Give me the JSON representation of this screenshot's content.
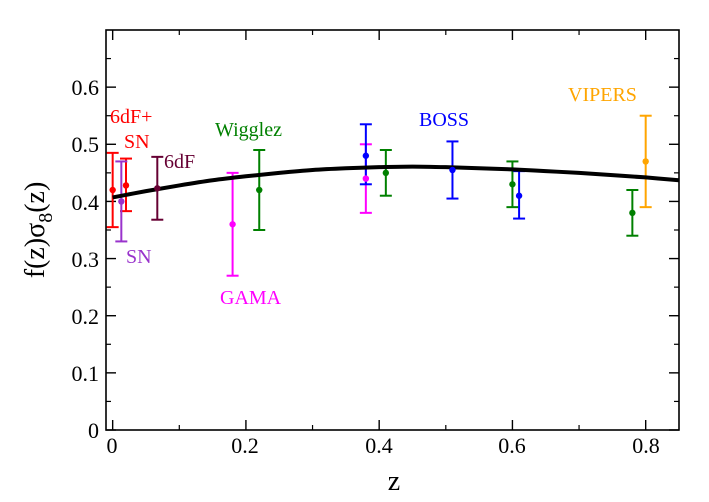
{
  "chart_data": {
    "type": "scatter",
    "title": "",
    "xlabel": "z",
    "ylabel_main": "f(z)σ",
    "ylabel_sub": "8",
    "ylabel_tail": "(z)",
    "xlim": [
      -0.01,
      0.85
    ],
    "ylim": [
      0,
      0.7
    ],
    "x_ticks": [
      0,
      0.2,
      0.4,
      0.6,
      0.8
    ],
    "x_tick_labels": [
      "0",
      "0.2",
      "0.4",
      "0.6",
      "0.8"
    ],
    "y_ticks": [
      0,
      0.1,
      0.2,
      0.3,
      0.4,
      0.5,
      0.6
    ],
    "y_tick_labels": [
      "0",
      "0.1",
      "0.2",
      "0.3",
      "0.4",
      "0.5",
      "0.6"
    ],
    "grid": false,
    "model_curve": {
      "name": "model",
      "color": "#000000",
      "x": [
        0,
        0.05,
        0.1,
        0.15,
        0.2,
        0.25,
        0.3,
        0.35,
        0.4,
        0.45,
        0.5,
        0.55,
        0.6,
        0.65,
        0.7,
        0.75,
        0.8,
        0.85
      ],
      "y": [
        0.407,
        0.418,
        0.428,
        0.437,
        0.444,
        0.45,
        0.455,
        0.458,
        0.46,
        0.461,
        0.46,
        0.458,
        0.456,
        0.453,
        0.45,
        0.446,
        0.442,
        0.437
      ]
    },
    "series": [
      {
        "name": "6dF+SN",
        "label_lines": [
          "6dF+",
          "SN"
        ],
        "color": "#ff0000",
        "points": [
          {
            "x": 0.0,
            "y": 0.42,
            "lo": 0.355,
            "hi": 0.485
          },
          {
            "x": 0.02,
            "y": 0.428,
            "lo": 0.383,
            "hi": 0.475
          }
        ]
      },
      {
        "name": "SN",
        "label_lines": [
          "SN"
        ],
        "color": "#9933cc",
        "points": [
          {
            "x": 0.013,
            "y": 0.4,
            "lo": 0.33,
            "hi": 0.47
          }
        ]
      },
      {
        "name": "6dF",
        "label_lines": [
          "6dF"
        ],
        "color": "#660033",
        "points": [
          {
            "x": 0.067,
            "y": 0.423,
            "lo": 0.368,
            "hi": 0.478
          }
        ]
      },
      {
        "name": "GAMA",
        "label_lines": [
          "GAMA"
        ],
        "color": "#ff00ff",
        "points": [
          {
            "x": 0.18,
            "y": 0.36,
            "lo": 0.27,
            "hi": 0.45
          },
          {
            "x": 0.38,
            "y": 0.44,
            "lo": 0.38,
            "hi": 0.5
          }
        ]
      },
      {
        "name": "Wigglez",
        "label_lines": [
          "Wigglez"
        ],
        "color": "#008000",
        "points": [
          {
            "x": 0.22,
            "y": 0.42,
            "lo": 0.35,
            "hi": 0.49
          },
          {
            "x": 0.41,
            "y": 0.45,
            "lo": 0.41,
            "hi": 0.49
          },
          {
            "x": 0.6,
            "y": 0.43,
            "lo": 0.39,
            "hi": 0.47
          },
          {
            "x": 0.78,
            "y": 0.38,
            "lo": 0.34,
            "hi": 0.42
          }
        ]
      },
      {
        "name": "BOSS",
        "label_lines": [
          "BOSS"
        ],
        "color": "#0000ff",
        "points": [
          {
            "x": 0.38,
            "y": 0.48,
            "lo": 0.43,
            "hi": 0.535
          },
          {
            "x": 0.51,
            "y": 0.455,
            "lo": 0.405,
            "hi": 0.505
          },
          {
            "x": 0.61,
            "y": 0.41,
            "lo": 0.37,
            "hi": 0.453
          }
        ]
      },
      {
        "name": "VIPERS",
        "label_lines": [
          "VIPERS"
        ],
        "color": "#ffa500",
        "points": [
          {
            "x": 0.8,
            "y": 0.47,
            "lo": 0.39,
            "hi": 0.55
          }
        ]
      }
    ]
  }
}
